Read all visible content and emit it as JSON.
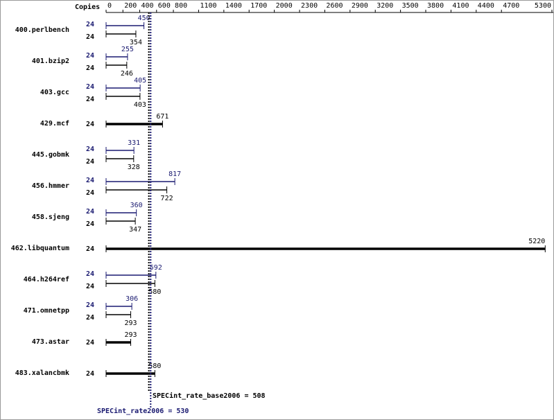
{
  "chart_data": {
    "type": "bar",
    "orientation": "horizontal",
    "copies_label": "Copies",
    "categories": [
      "400.perlbench",
      "401.bzip2",
      "403.gcc",
      "429.mcf",
      "445.gobmk",
      "456.hmmer",
      "458.sjeng",
      "462.libquantum",
      "464.h264ref",
      "471.omnetpp",
      "473.astar",
      "483.xalancbmk"
    ],
    "series": [
      {
        "color": "#191970",
        "copies": [
          24,
          24,
          24,
          null,
          24,
          24,
          24,
          null,
          24,
          24,
          null,
          null
        ],
        "values": [
          450,
          255,
          405,
          null,
          331,
          817,
          360,
          null,
          592,
          306,
          null,
          null
        ]
      },
      {
        "color": "#000000",
        "copies": [
          24,
          24,
          24,
          24,
          24,
          24,
          24,
          24,
          24,
          24,
          24,
          24
        ],
        "values": [
          354,
          246,
          403,
          671,
          328,
          722,
          347,
          5220,
          580,
          293,
          293,
          580
        ]
      }
    ],
    "xlim": [
      0,
      5300
    ],
    "xticks": [
      0,
      200,
      400,
      600,
      800,
      1100,
      1400,
      1700,
      2000,
      2300,
      2600,
      2900,
      3200,
      3500,
      3800,
      4100,
      4400,
      4700,
      5300
    ],
    "reference_lines": [
      {
        "label": "SPECint_rate_base2006 = 508",
        "value": 508,
        "color": "#000000"
      },
      {
        "label": "SPECint_rate2006 = 530",
        "value": 530,
        "color": "#191970"
      }
    ]
  }
}
